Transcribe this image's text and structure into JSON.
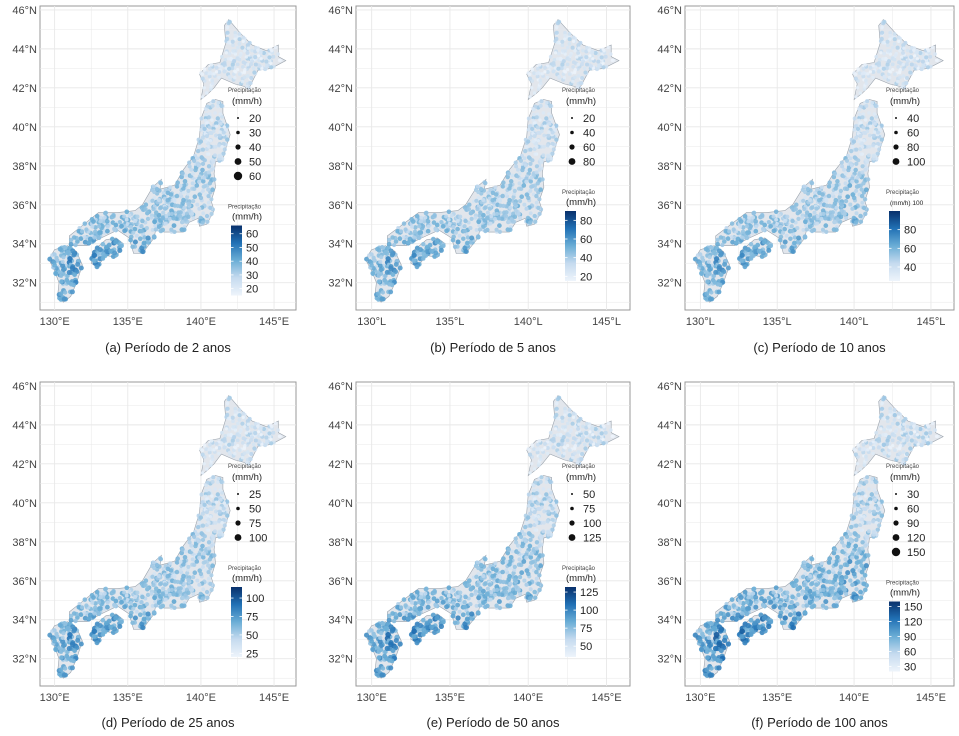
{
  "colors": {
    "low": "#deebf7",
    "high": "#08306b",
    "land": "#e2e6ec",
    "grid": "#e8e8e8",
    "frame": "#999999"
  },
  "chart_data": [
    {
      "type": "scatter",
      "caption": "(a) Período de 2 anos",
      "x_ticks": [
        "130°E",
        "135°E",
        "140°E",
        "145°E"
      ],
      "y_ticks": [
        "32°N",
        "34°N",
        "36°N",
        "38°N",
        "40°N",
        "42°N",
        "44°N",
        "46°N"
      ],
      "xlim": [
        129,
        146.5
      ],
      "ylim": [
        30.6,
        46.2
      ],
      "size_legend": {
        "title": "Precipitação",
        "unit": "(mm/h)",
        "values": [
          20,
          30,
          40,
          50,
          60
        ]
      },
      "color_legend": {
        "title": "Precipitação",
        "unit": "(mm/h)",
        "ticks": [
          20,
          30,
          40,
          50,
          60
        ],
        "range": [
          15,
          66
        ]
      },
      "intensity": 0.6,
      "grid": true
    },
    {
      "type": "scatter",
      "caption": "(b) Período de 5 anos",
      "x_ticks": [
        "130°L",
        "135°L",
        "140°L",
        "145°L"
      ],
      "y_ticks": [
        "32°N",
        "34°N",
        "36°N",
        "38°N",
        "40°N",
        "42°N",
        "44°N",
        "46°N"
      ],
      "xlim": [
        129,
        146.5
      ],
      "ylim": [
        30.6,
        46.2
      ],
      "size_legend": {
        "title": "Precipitação",
        "unit": "(mm/h)",
        "values": [
          20,
          40,
          60,
          80
        ]
      },
      "color_legend": {
        "title": "Precipitação",
        "unit": "(mm/h)",
        "ticks": [
          20,
          40,
          60,
          80
        ],
        "range": [
          15,
          90
        ]
      },
      "intensity": 0.55,
      "grid": true
    },
    {
      "type": "scatter",
      "caption": "(c) Período de 10 anos",
      "x_ticks": [
        "130°L",
        "135°L",
        "140°L",
        "145°L"
      ],
      "y_ticks": [
        "32°N",
        "34°N",
        "36°N",
        "38°N",
        "40°N",
        "42°N",
        "44°N",
        "46°N"
      ],
      "xlim": [
        129,
        146.5
      ],
      "ylim": [
        30.6,
        46.2
      ],
      "size_legend": {
        "title": "Precipitação",
        "unit": "(mm/h)",
        "values": [
          40,
          60,
          80,
          100
        ]
      },
      "color_legend": {
        "title": "Precipitação",
        "unit": "(mm/h) 100",
        "ticks": [
          40,
          60,
          80
        ],
        "range": [
          25,
          100
        ]
      },
      "intensity": 0.55,
      "grid": true
    },
    {
      "type": "scatter",
      "caption": "(d) Período de 25 anos",
      "x_ticks": [
        "130°E",
        "135°E",
        "140°E",
        "145°E"
      ],
      "y_ticks": [
        "32°N",
        "34°N",
        "36°N",
        "38°N",
        "40°N",
        "42°N",
        "44°N",
        "46°N"
      ],
      "xlim": [
        129,
        146.5
      ],
      "ylim": [
        30.6,
        46.2
      ],
      "size_legend": {
        "title": "Precipitação",
        "unit": "(mm/h)",
        "values": [
          25,
          50,
          75,
          100
        ]
      },
      "color_legend": {
        "title": "Precipitação",
        "unit": "(mm/h)",
        "ticks": [
          25,
          50,
          75,
          100
        ],
        "range": [
          20,
          115
        ]
      },
      "intensity": 0.6,
      "grid": true
    },
    {
      "type": "scatter",
      "caption": "(e) Período de 50 anos",
      "x_ticks": [
        "130°E",
        "135°E",
        "140°E",
        "145°E"
      ],
      "y_ticks": [
        "32°N",
        "34°N",
        "36°N",
        "38°N",
        "40°N",
        "42°N",
        "44°N",
        "46°N"
      ],
      "xlim": [
        129,
        146.5
      ],
      "ylim": [
        30.6,
        46.2
      ],
      "size_legend": {
        "title": "Precipitação",
        "unit": "(mm/h)",
        "values": [
          50,
          75,
          100,
          125
        ]
      },
      "color_legend": {
        "title": "Precipitação",
        "unit": "(mm/h)",
        "ticks": [
          50,
          75,
          100,
          125
        ],
        "range": [
          35,
          132
        ]
      },
      "intensity": 0.65,
      "grid": true
    },
    {
      "type": "scatter",
      "caption": "(f) Período de 100 anos",
      "x_ticks": [
        "130°E",
        "135°E",
        "140°E",
        "145°E"
      ],
      "y_ticks": [
        "32°N",
        "34°N",
        "36°N",
        "38°N",
        "40°N",
        "42°N",
        "44°N",
        "46°N"
      ],
      "xlim": [
        129,
        146.5
      ],
      "ylim": [
        30.6,
        46.2
      ],
      "size_legend": {
        "title": "Precipitação",
        "unit": "(mm/h)",
        "values": [
          30,
          60,
          90,
          120,
          150
        ]
      },
      "color_legend": {
        "title": "Precipitação",
        "unit": "(mm/h)",
        "ticks": [
          30,
          60,
          90,
          120,
          150
        ],
        "range": [
          20,
          160
        ]
      },
      "intensity": 0.7,
      "grid": true
    }
  ]
}
